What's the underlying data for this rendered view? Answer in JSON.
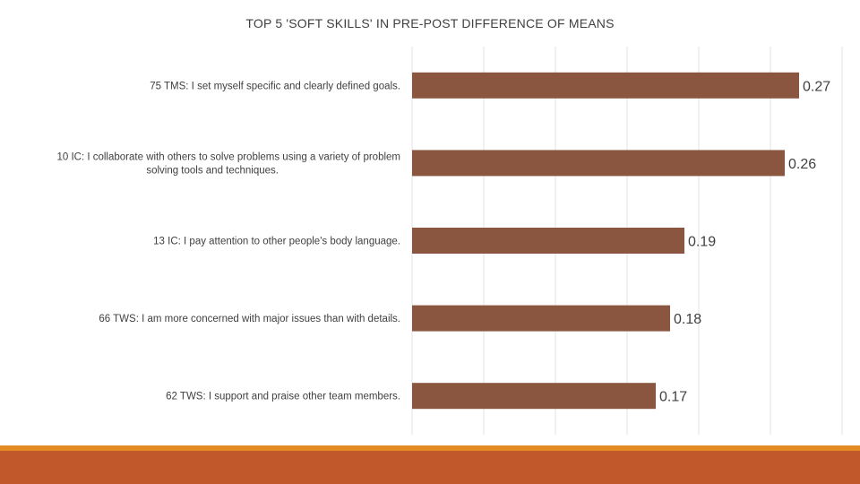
{
  "colors": {
    "bar": "#8a5640",
    "footer_stripe": "#e48a22",
    "footer_band": "#c1582b"
  },
  "chart_data": {
    "type": "bar",
    "orientation": "horizontal",
    "title": "TOP 5 'SOFT SKILLS' IN PRE-POST DIFFERENCE OF MEANS",
    "categories": [
      [
        "75 TMS: I set myself specific and clearly defined goals."
      ],
      [
        "10 IC: I collaborate with others to solve problems using a variety of problem",
        "solving tools and techniques."
      ],
      [
        "13 IC: I pay attention to other people's body language."
      ],
      [
        "66 TWS: I am more concerned with major issues than with details."
      ],
      [
        "62 TWS: I support and praise other team members."
      ]
    ],
    "values": [
      0.27,
      0.26,
      0.19,
      0.18,
      0.17
    ],
    "value_labels": [
      "0.27",
      "0.26",
      "0.19",
      "0.18",
      "0.17"
    ],
    "xlim": [
      0,
      0.3
    ],
    "gridlines": "vertical",
    "legend": "none",
    "axis_labels_shown": false
  }
}
